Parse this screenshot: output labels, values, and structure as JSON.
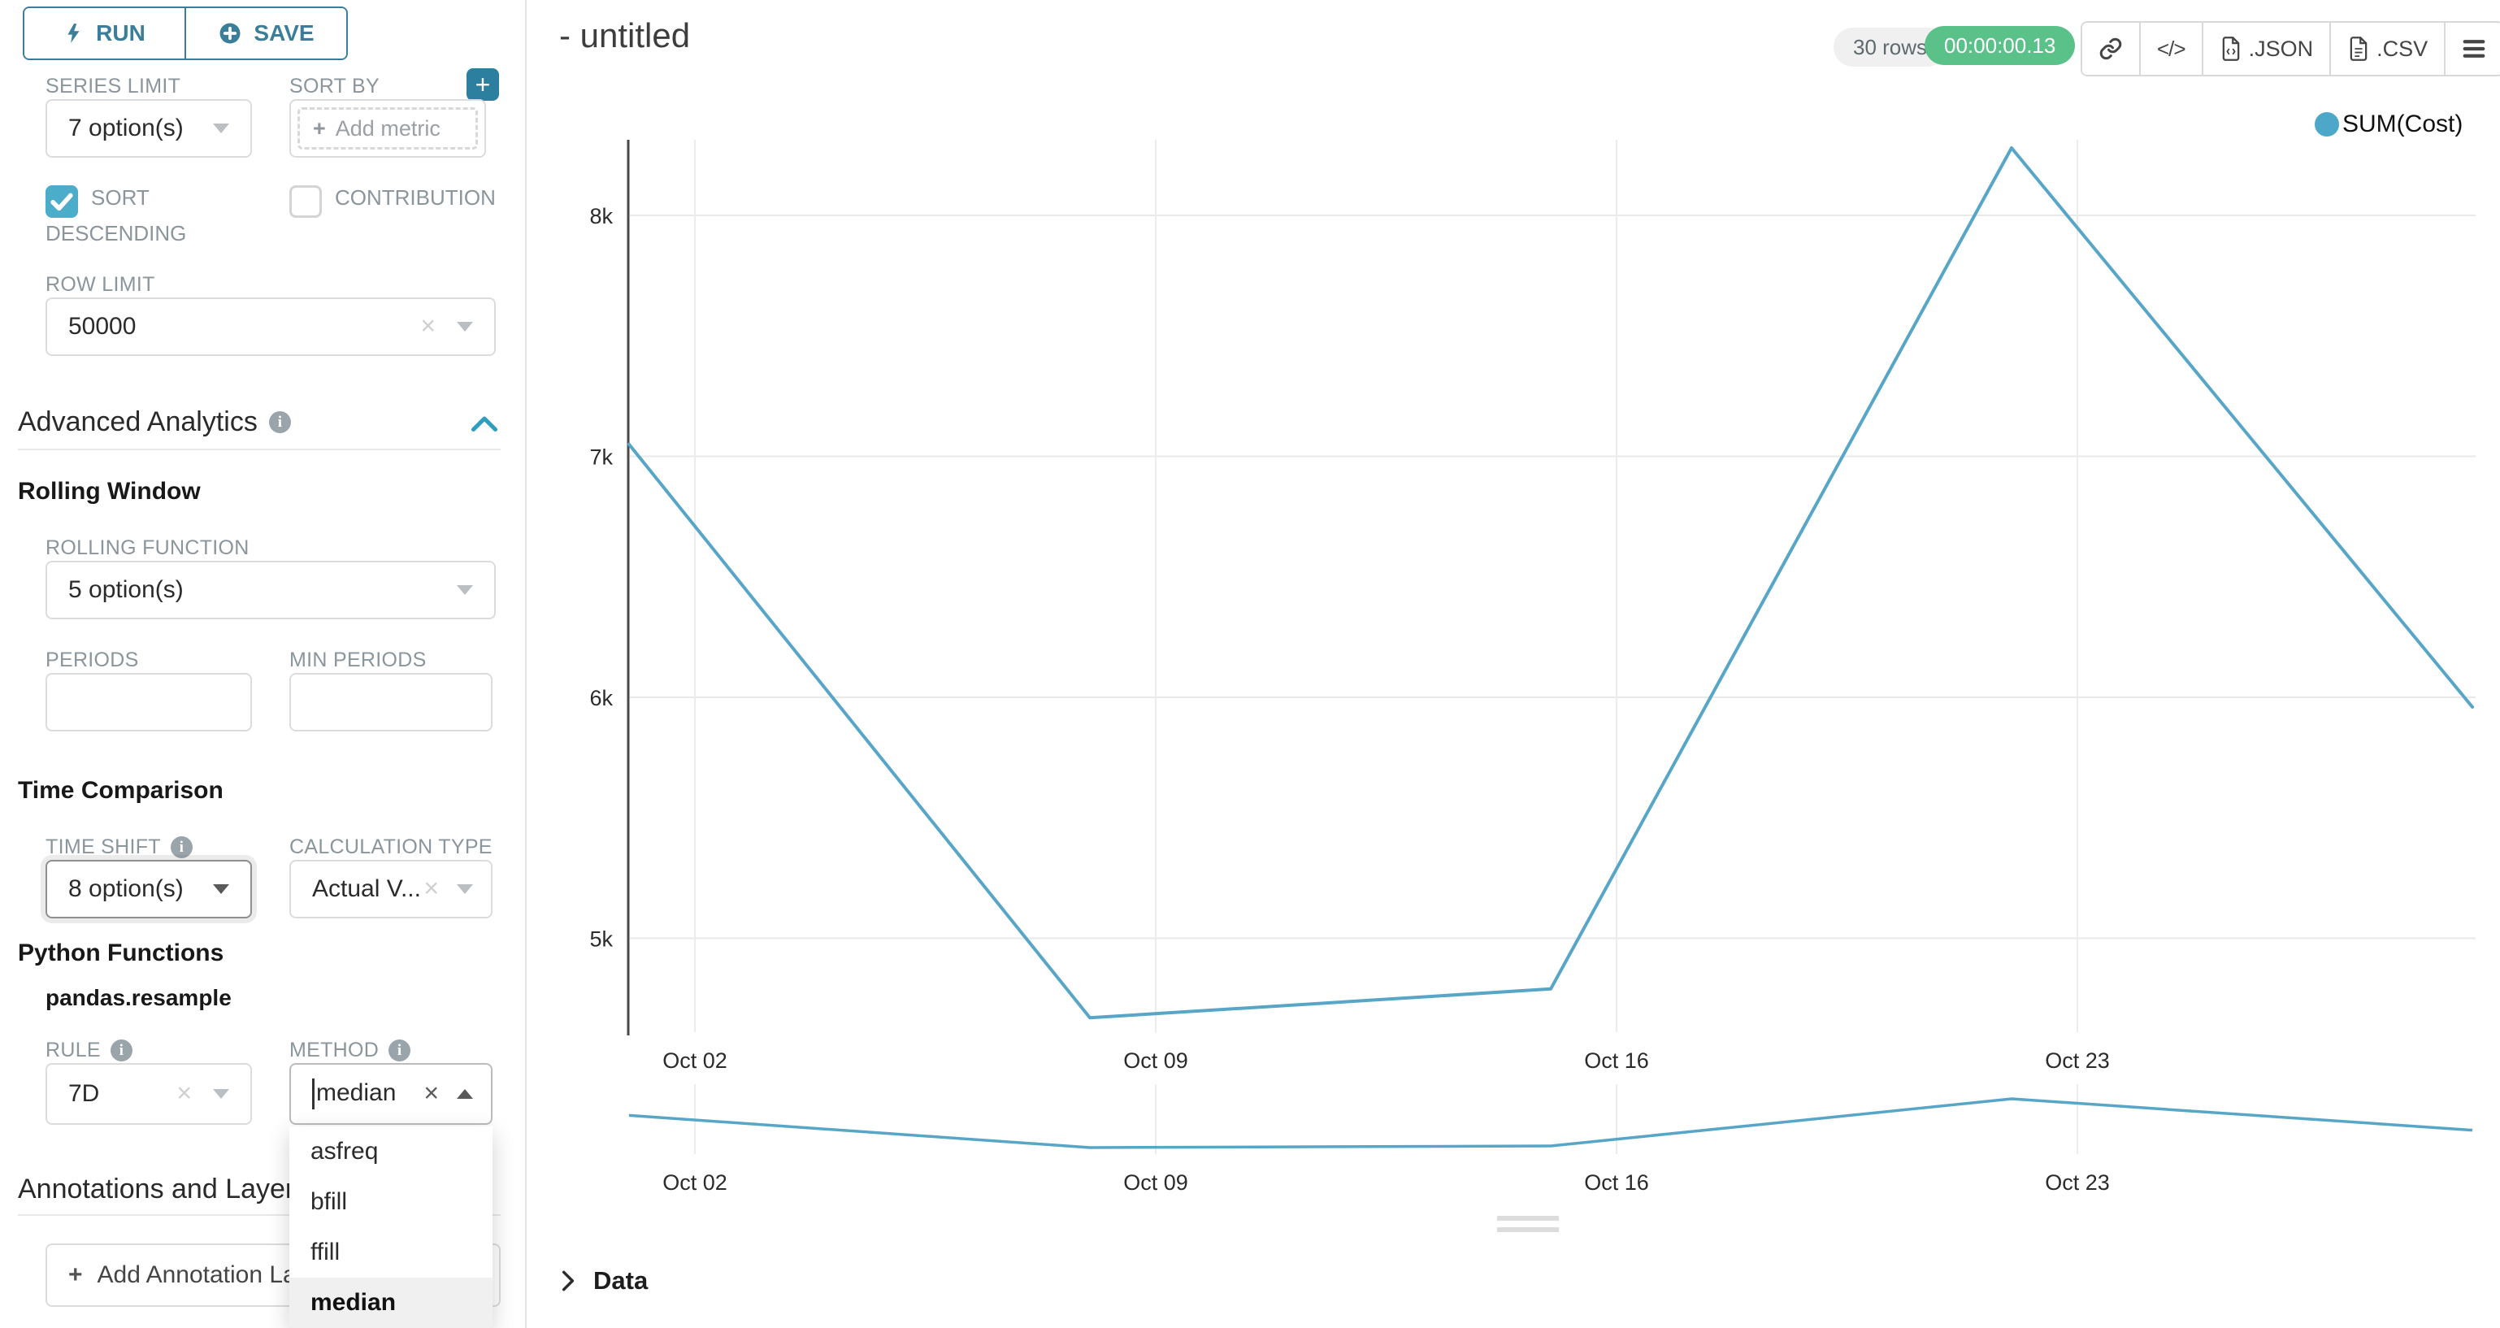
{
  "toolbar": {
    "run_label": "RUN",
    "save_label": "SAVE"
  },
  "controls": {
    "series_limit": {
      "label": "SERIES LIMIT",
      "value": "7 option(s)"
    },
    "sort_by": {
      "label": "SORT BY",
      "placeholder": "Add metric"
    },
    "sort_descending": {
      "label": "SORT DESCENDING",
      "checked": true
    },
    "contribution": {
      "label": "CONTRIBUTION",
      "checked": false
    },
    "row_limit": {
      "label": "ROW LIMIT",
      "value": "50000"
    },
    "advanced_analytics": {
      "title": "Advanced Analytics"
    },
    "rolling_window": {
      "title": "Rolling Window",
      "rolling_function": {
        "label": "ROLLING FUNCTION",
        "value": "5 option(s)"
      },
      "periods": {
        "label": "PERIODS",
        "value": ""
      },
      "min_periods": {
        "label": "MIN PERIODS",
        "value": ""
      }
    },
    "time_comparison": {
      "title": "Time Comparison",
      "time_shift": {
        "label": "TIME SHIFT",
        "value": "8 option(s)"
      },
      "calculation_type": {
        "label": "CALCULATION TYPE",
        "value": "Actual V..."
      }
    },
    "python_functions": {
      "title": "Python Functions",
      "subtitle": "pandas.resample",
      "rule": {
        "label": "RULE",
        "value": "7D"
      },
      "method": {
        "label": "METHOD",
        "value": "median",
        "options": [
          "asfreq",
          "bfill",
          "ffill",
          "median"
        ],
        "highlighted": "median"
      }
    },
    "annotations": {
      "title": "Annotations and Layers",
      "add_button": "Add Annotation Layer"
    }
  },
  "header": {
    "title": "- untitled",
    "rows_badge": "30 rows",
    "timer": "00:00:00.13",
    "code_glyph": "</>",
    "export_json": ".JSON",
    "export_csv": ".CSV",
    "colors": {
      "timer_green": "#5ac189",
      "badge_gray": "#f0f0f0"
    }
  },
  "data_panel": {
    "title": "Data"
  },
  "chart_data": {
    "type": "line",
    "title": "",
    "legend_position": "top-right",
    "grid": true,
    "x": [
      "Oct 01",
      "Oct 08",
      "Oct 15",
      "Oct 22",
      "Oct 29"
    ],
    "series": [
      {
        "name": "SUM(Cost)",
        "color": "#57a6c7",
        "values": [
          7050,
          4670,
          4790,
          8280,
          5960
        ]
      }
    ],
    "ylim": [
      4500,
      8500
    ],
    "y_ticks": [
      {
        "label": "8k",
        "value": 8000
      },
      {
        "label": "7k",
        "value": 7000
      },
      {
        "label": "6k",
        "value": 6000
      },
      {
        "label": "5k",
        "value": 5000
      }
    ],
    "x_ticks": [
      {
        "label": "Oct 02"
      },
      {
        "label": "Oct 09"
      },
      {
        "label": "Oct 16"
      },
      {
        "label": "Oct 23"
      }
    ],
    "mini_chart": {
      "x_ticks": [
        "Oct 02",
        "Oct 09",
        "Oct 16",
        "Oct 23"
      ]
    }
  }
}
